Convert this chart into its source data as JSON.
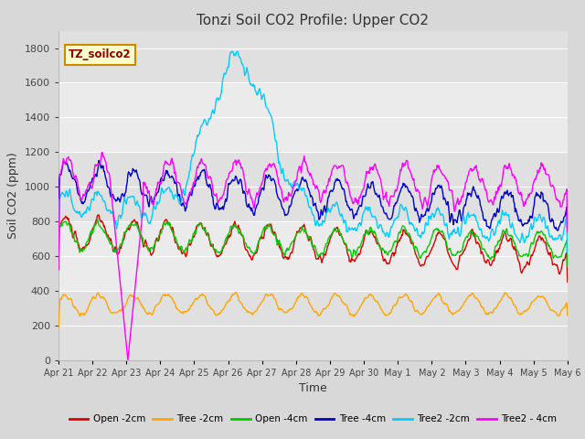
{
  "title": "Tonzi Soil CO2 Profile: Upper CO2",
  "ylabel": "Soil CO2 (ppm)",
  "xlabel": "Time",
  "legend_label": "TZ_soilco2",
  "ylim": [
    0,
    1900
  ],
  "yticks": [
    0,
    200,
    400,
    600,
    800,
    1000,
    1200,
    1400,
    1600,
    1800
  ],
  "x_tick_labels": [
    "Apr 21",
    "Apr 22",
    "Apr 23",
    "Apr 24",
    "Apr 25",
    "Apr 26",
    "Apr 27",
    "Apr 28",
    "Apr 29",
    "Apr 30",
    "May 1",
    "May 2",
    "May 3",
    "May 4",
    "May 5",
    "May 6"
  ],
  "series": {
    "Open -2cm": {
      "color": "#dd0000",
      "lw": 1.0
    },
    "Tree -2cm": {
      "color": "#ffa500",
      "lw": 1.0
    },
    "Open -4cm": {
      "color": "#00cc00",
      "lw": 1.0
    },
    "Tree -4cm": {
      "color": "#0000cc",
      "lw": 1.0
    },
    "Tree2 -2cm": {
      "color": "#00ccff",
      "lw": 1.0
    },
    "Tree2 - 4cm": {
      "color": "#ff00ff",
      "lw": 1.0
    }
  },
  "bg_bands": [
    [
      1600,
      1900,
      "#e0e0e0"
    ],
    [
      1200,
      1600,
      "#ebebeb"
    ],
    [
      800,
      1200,
      "#e0e0e0"
    ],
    [
      400,
      800,
      "#ebebeb"
    ],
    [
      0,
      400,
      "#e0e0e0"
    ]
  ],
  "grid_lines": [
    200,
    400,
    600,
    800,
    1000,
    1200,
    1400,
    1600,
    1800
  ],
  "grid_color": "#ffffff",
  "background_color": "#d8d8d8",
  "title_color": "#333333",
  "n_points": 720
}
